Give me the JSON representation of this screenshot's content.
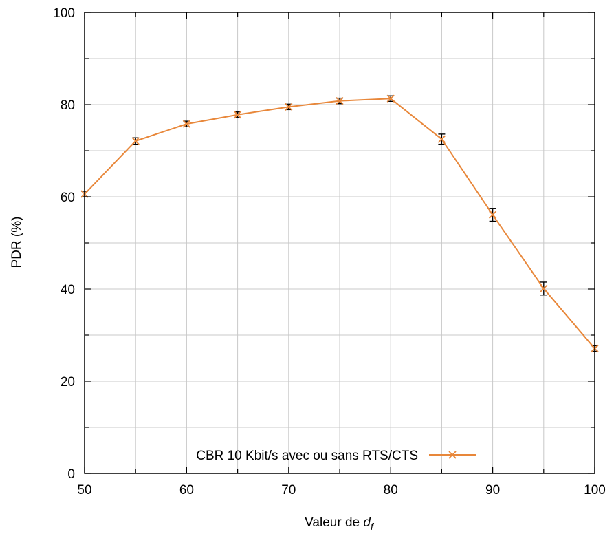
{
  "chart_data": {
    "type": "line",
    "title": "",
    "xlabel": "Valeur de ",
    "xlabel_var": "d",
    "xlabel_sub": "f",
    "ylabel": "PDR (%)",
    "xlim": [
      50,
      100
    ],
    "ylim": [
      0,
      100
    ],
    "xticks": [
      50,
      60,
      70,
      80,
      90,
      100
    ],
    "yticks": [
      0,
      20,
      40,
      60,
      80,
      100
    ],
    "x_minor_step": 5,
    "y_minor_step": 10,
    "grid": true,
    "legend_position": "bottom-left",
    "series": [
      {
        "name": "CBR 10 Kbit/s avec ou sans RTS/CTS",
        "color": "#e8873a",
        "marker": "x",
        "error_bars": true,
        "x": [
          50,
          55,
          60,
          65,
          70,
          75,
          80,
          85,
          90,
          95,
          100
        ],
        "y": [
          60.6,
          72.1,
          75.8,
          77.8,
          79.5,
          80.8,
          81.3,
          72.5,
          56.1,
          40.1,
          27.1
        ],
        "err": [
          0.6,
          0.7,
          0.6,
          0.6,
          0.6,
          0.6,
          0.6,
          1.1,
          1.4,
          1.4,
          0.6
        ]
      }
    ]
  }
}
